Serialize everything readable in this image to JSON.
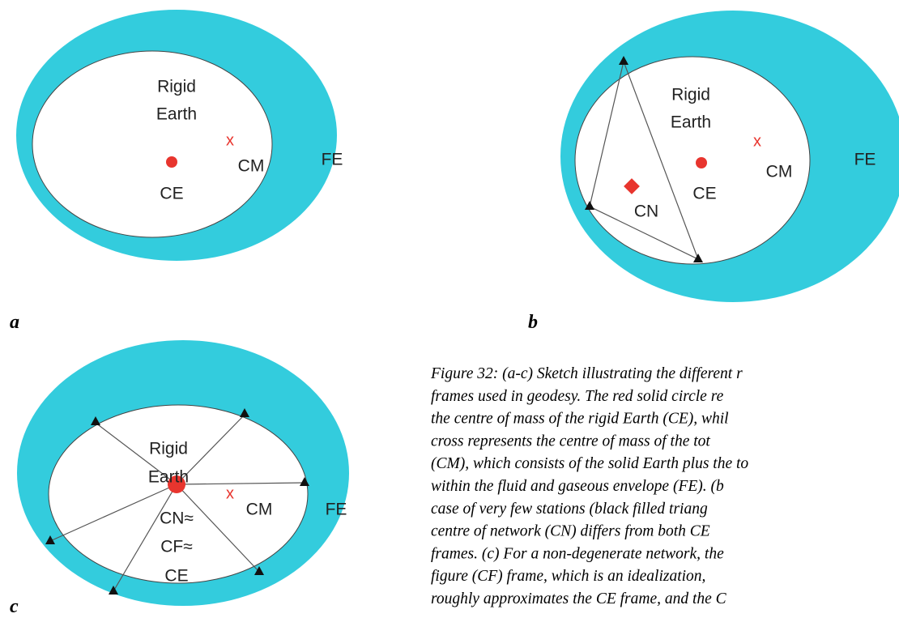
{
  "panels": [
    {
      "letter": "a",
      "rigid": "Rigid",
      "earth": "Earth",
      "cm": "CM",
      "ce": "CE",
      "fe": "FE",
      "cross": "x"
    },
    {
      "letter": "b",
      "rigid": "Rigid",
      "earth": "Earth",
      "cm": "CM",
      "ce": "CE",
      "fe": "FE",
      "cn": "CN",
      "cross": "x"
    },
    {
      "letter": "c",
      "rigid": "Rigid",
      "earth": "Earth",
      "cm": "CM",
      "fe": "FE",
      "cn": "CN≈",
      "cf": "CF≈",
      "ce": "CE",
      "cross": "x"
    }
  ],
  "caption": [
    "Figure 32: (a-c) Sketch illustrating the different r",
    "frames used in geodesy. The red solid circle re",
    "the centre of mass of the rigid Earth (CE), whil",
    "cross represents the centre of mass of the tot",
    "(CM), which consists of the solid Earth plus the to",
    "within the fluid and gaseous envelope (FE). (b",
    "case of very few stations (black filled triang",
    "centre of network (CN) differs from both CE",
    "frames. (c) For a non-degenerate network, the",
    "figure (CF) frame, which is an idealization,",
    "roughly approximates the CE frame, and the C"
  ]
}
